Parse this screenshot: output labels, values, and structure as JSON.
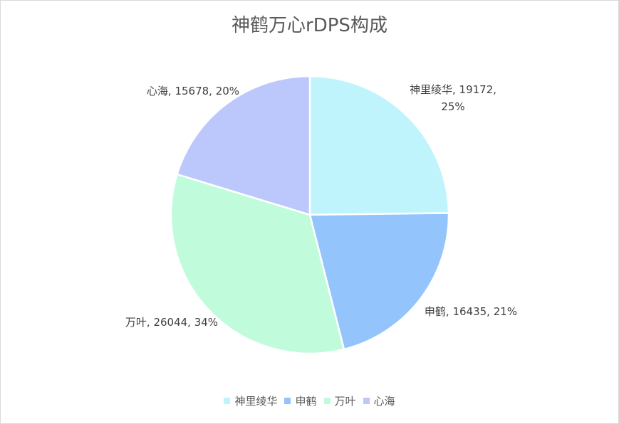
{
  "chart_data": {
    "type": "pie",
    "title": "神鹤万心rDPS构成",
    "categories": [
      "神里绫华",
      "申鹤",
      "万叶",
      "心海"
    ],
    "values": [
      19172,
      16435,
      26044,
      15678
    ],
    "value_labels": [
      "神里绫华, 19172, 25%",
      "申鹤, 16435, 21%",
      "万叶, 26044, 34%",
      "心海, 15678, 20%"
    ],
    "colors": [
      "#c0f4fc",
      "#94c4fc",
      "#c0fcdc",
      "#bcc8fc"
    ],
    "legend": "bottom"
  }
}
